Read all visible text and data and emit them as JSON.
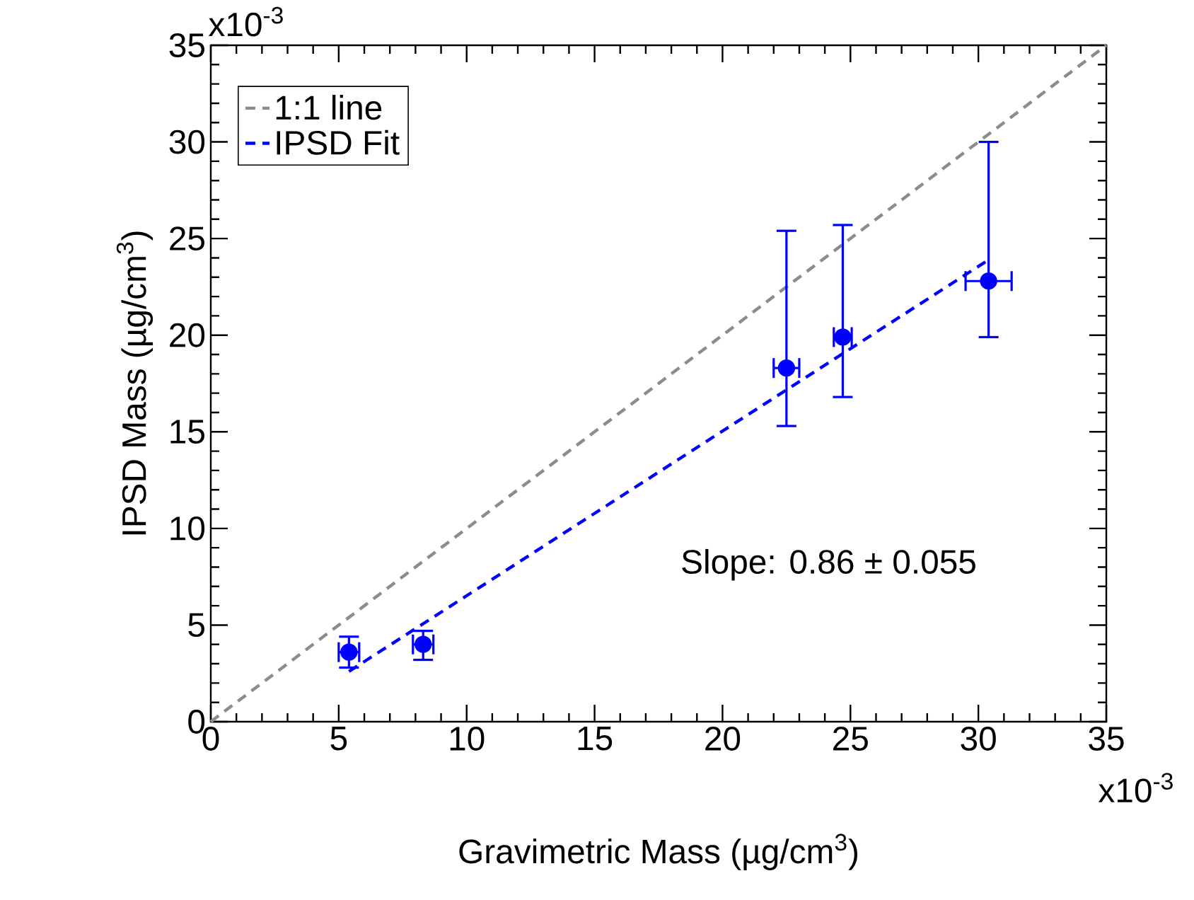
{
  "chart_data": {
    "type": "scatter",
    "xlabel": "Gravimetric Mass  (µg/cm$^{3}$)",
    "ylabel": "IPSD Mass  (µg/cm$^{3}$)",
    "xlim": [
      0,
      35
    ],
    "ylim": [
      0,
      35
    ],
    "xticks": [
      0,
      5,
      10,
      15,
      20,
      25,
      30,
      35
    ],
    "yticks": [
      0,
      5,
      10,
      15,
      20,
      25,
      30,
      35
    ],
    "legend": "top left",
    "grid": false,
    "annotations": [
      "Slope: 0.86 ± 0.055",
      "x10$^{-3}$",
      "x10$^{-3}$"
    ],
    "series": [
      {
        "name": "1:1 line",
        "type": "line",
        "color": "#8c8c8c",
        "line_style": "dashed",
        "marker": "none",
        "x": [
          0,
          35
        ],
        "values": [
          0,
          35
        ]
      },
      {
        "name": "IPSD Fit",
        "type": "line",
        "color": "#0000ff",
        "line_style": "dashed",
        "marker": "none",
        "x": [
          5.4,
          30.4
        ],
        "values": [
          2.6,
          23.9
        ]
      },
      {
        "type": "scatter",
        "color": "#0000ff",
        "marker": "circle",
        "x": [
          5.4,
          8.3,
          22.5,
          24.7,
          30.4
        ],
        "values": [
          3.6,
          4.0,
          18.3,
          19.9,
          22.8
        ],
        "errors": [
          [
            2.8,
            4.4
          ],
          [
            3.2,
            4.7
          ],
          [
            15.3,
            25.4
          ],
          [
            16.8,
            25.7
          ],
          [
            19.9,
            30.0
          ]
        ],
        "xerrors": [
          0.4,
          0.4,
          0.5,
          0.35,
          0.9
        ]
      }
    ]
  }
}
